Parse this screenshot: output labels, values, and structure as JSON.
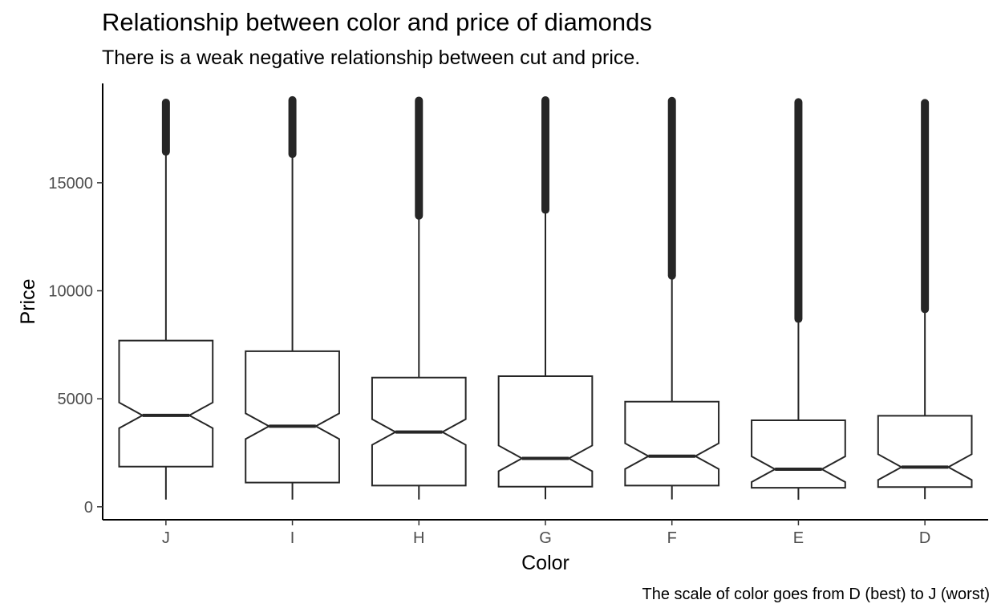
{
  "chart_data": {
    "type": "boxplot",
    "title": "Relationship between color and price of diamonds",
    "subtitle": "There is a weak negative relationship between cut and price.",
    "caption": "The scale of color goes from D (best) to J (worst)",
    "xlabel": "Color",
    "ylabel": "Price",
    "categories": [
      "J",
      "I",
      "H",
      "G",
      "F",
      "E",
      "D"
    ],
    "ylim": [
      -600,
      19600
    ],
    "yticks": [
      0,
      5000,
      10000,
      15000
    ],
    "notched": true,
    "grid": false,
    "boxes": [
      {
        "category": "J",
        "min": 335,
        "q1": 1860,
        "median": 4234,
        "q3": 7695,
        "upper_whisker": 16440,
        "outliers_from": 16440,
        "outliers_to": 18710
      },
      {
        "category": "I",
        "min": 334,
        "q1": 1120,
        "median": 3730,
        "q3": 7202,
        "upper_whisker": 16330,
        "outliers_from": 16330,
        "outliers_to": 18823
      },
      {
        "category": "H",
        "min": 337,
        "q1": 984,
        "median": 3460,
        "q3": 5980,
        "upper_whisker": 13480,
        "outliers_from": 13480,
        "outliers_to": 18803
      },
      {
        "category": "G",
        "min": 354,
        "q1": 931,
        "median": 2242,
        "q3": 6048,
        "upper_whisker": 13750,
        "outliers_from": 13750,
        "outliers_to": 18818
      },
      {
        "category": "F",
        "min": 342,
        "q1": 982,
        "median": 2344,
        "q3": 4868,
        "upper_whisker": 10700,
        "outliers_from": 10700,
        "outliers_to": 18791
      },
      {
        "category": "E",
        "min": 326,
        "q1": 882,
        "median": 1739,
        "q3": 4003,
        "upper_whisker": 8700,
        "outliers_from": 8700,
        "outliers_to": 18731
      },
      {
        "category": "D",
        "min": 357,
        "q1": 911,
        "median": 1838,
        "q3": 4214,
        "upper_whisker": 9150,
        "outliers_from": 9150,
        "outliers_to": 18693
      }
    ]
  }
}
